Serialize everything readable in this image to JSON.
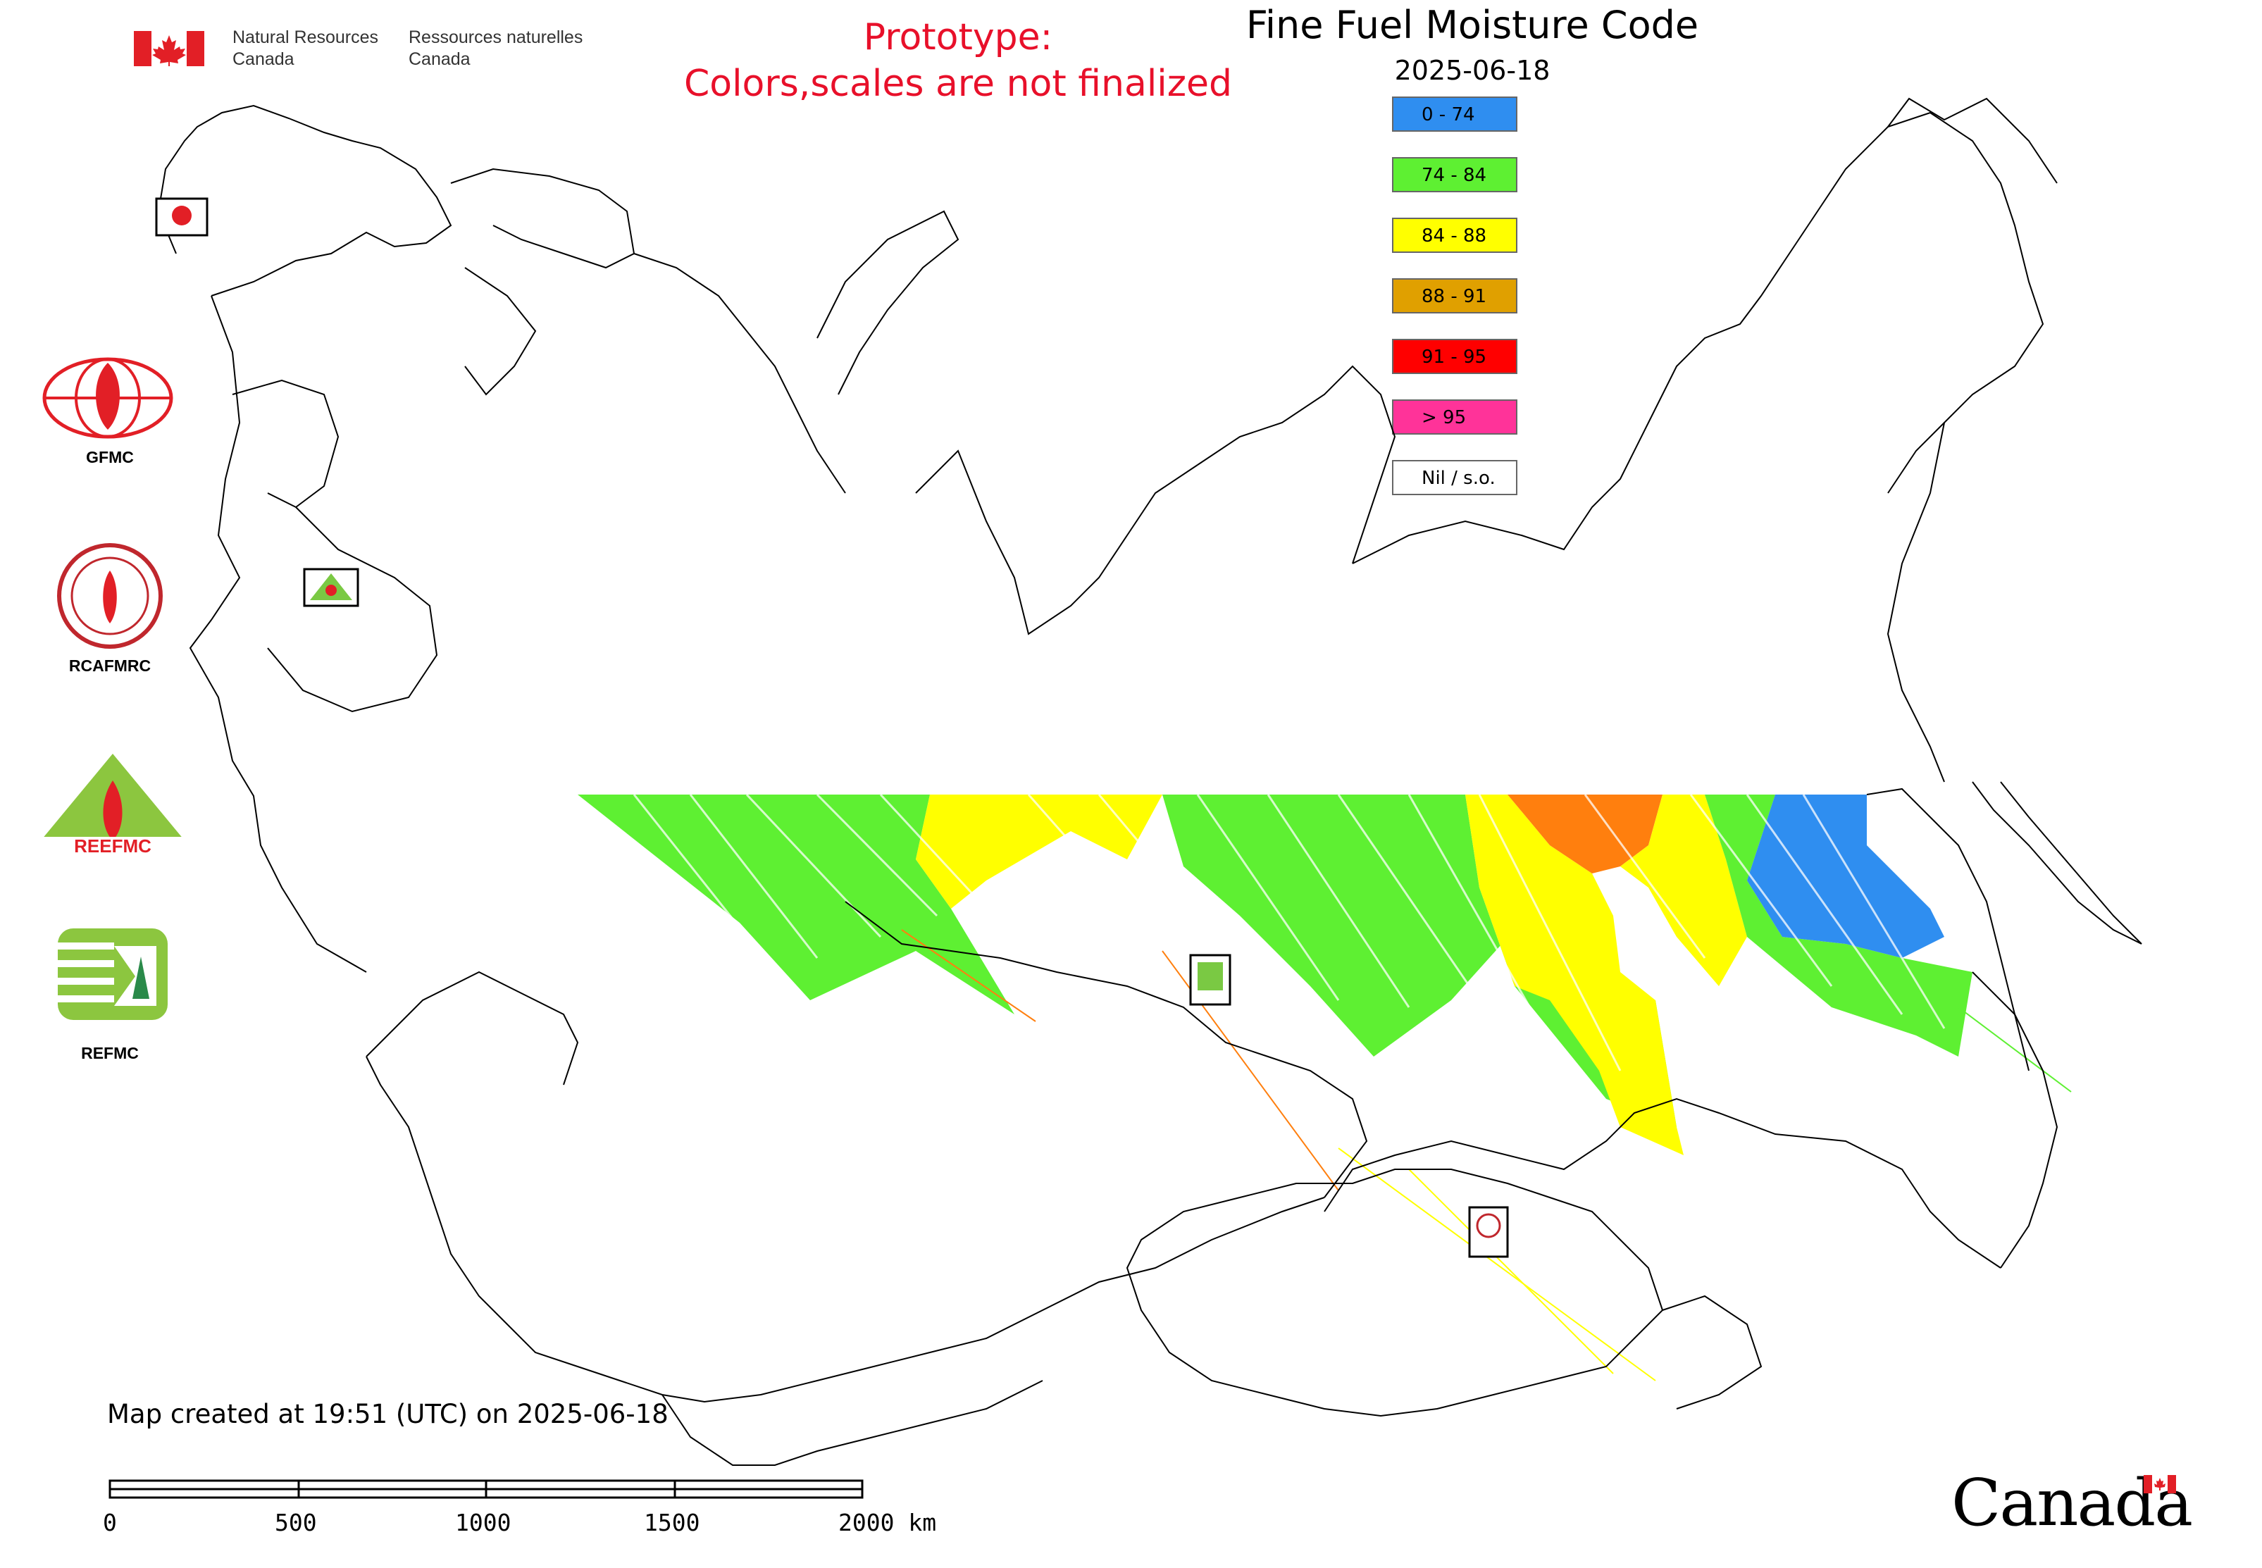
{
  "header": {
    "agency_en": "Natural Resources\nCanada",
    "agency_fr": "Ressources naturelles\nCanada",
    "prototype_line1": "Prototype:",
    "prototype_line2": "Colors,scales are not finalized"
  },
  "map": {
    "title": "Fine Fuel Moisture Code",
    "date": "2025-06-18"
  },
  "legend": [
    {
      "label": "0 - 74",
      "color": "#2f8ef0"
    },
    {
      "label": "74 - 84",
      "color": "#5ef032"
    },
    {
      "label": "84 - 88",
      "color": "#ffff00"
    },
    {
      "label": "88 - 91",
      "color": "#e0a000"
    },
    {
      "label": "91 - 95",
      "color": "#ff0000"
    },
    {
      "label": "> 95",
      "color": "#ff3399"
    },
    {
      "label": "Nil / s.o.",
      "color": "#ffffff"
    }
  ],
  "logos": [
    {
      "name": "gfmc",
      "label": "GFMC"
    },
    {
      "name": "rcafmrc",
      "label": "RCAFMRC"
    },
    {
      "name": "reefmc",
      "label": ""
    },
    {
      "name": "refmc",
      "label": "REFMC"
    }
  ],
  "footer": {
    "created": "Map created at 19:51 (UTC) on 2025-06-18",
    "scale_labels": [
      "0",
      "500",
      "1000",
      "1500",
      "2000 km"
    ],
    "wordmark": "Canada"
  },
  "colors": {
    "prototype_text": "#e8102a",
    "boundary": "#000000",
    "orange_zone": "#ff7f0e"
  }
}
